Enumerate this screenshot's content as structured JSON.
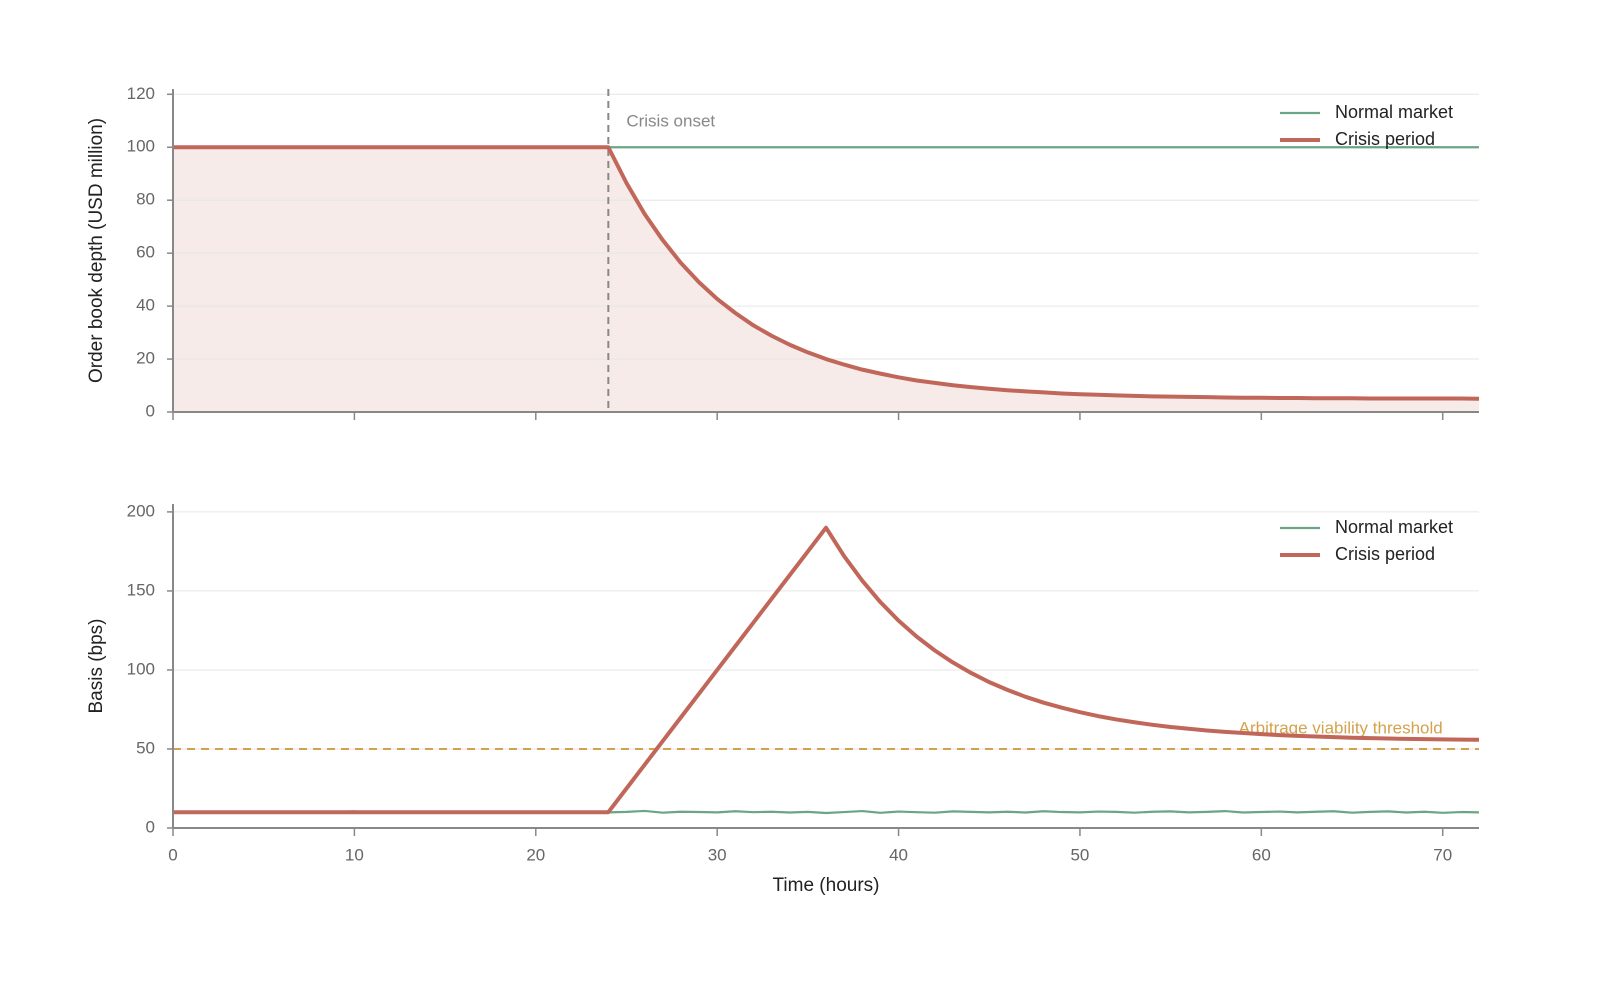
{
  "chart_data": [
    {
      "type": "line",
      "ylabel": "Order book depth (USD million)",
      "x": [
        0,
        1,
        2,
        3,
        4,
        5,
        6,
        7,
        8,
        9,
        10,
        11,
        12,
        13,
        14,
        15,
        16,
        17,
        18,
        19,
        20,
        21,
        22,
        23,
        24,
        25,
        26,
        27,
        28,
        29,
        30,
        31,
        32,
        33,
        34,
        35,
        36,
        37,
        38,
        39,
        40,
        41,
        42,
        43,
        44,
        45,
        46,
        47,
        48,
        49,
        50,
        51,
        52,
        53,
        54,
        55,
        56,
        57,
        58,
        59,
        60,
        61,
        62,
        63,
        64,
        65,
        66,
        67,
        68,
        69,
        70,
        71,
        72
      ],
      "series": [
        {
          "name": "Normal market",
          "color": "#6aa584",
          "values": [
            100,
            100,
            100,
            100,
            100,
            100,
            100,
            100,
            100,
            100,
            100,
            100,
            100,
            100,
            100,
            100,
            100,
            100,
            100,
            100,
            100,
            100,
            100,
            100,
            100,
            100,
            100,
            100,
            100,
            100,
            100,
            100,
            100,
            100,
            100,
            100,
            100,
            100,
            100,
            100,
            100,
            100,
            100,
            100,
            100,
            100,
            100,
            100,
            100,
            100,
            100,
            100,
            100,
            100,
            100,
            100,
            100,
            100,
            100,
            100,
            100,
            100,
            100,
            100,
            100,
            100,
            100,
            100,
            100,
            100,
            100,
            100,
            100
          ]
        },
        {
          "name": "Crisis period",
          "color": "#c0675a",
          "values": [
            100,
            100,
            100,
            100,
            100,
            100,
            100,
            100,
            100,
            100,
            100,
            100,
            100,
            100,
            100,
            100,
            100,
            100,
            100,
            100,
            100,
            100,
            100,
            100,
            100,
            86.5,
            74.8,
            64.9,
            56.3,
            49,
            42.7,
            37.4,
            32.7,
            28.8,
            25.4,
            22.5,
            20,
            17.9,
            16,
            14.5,
            13.1,
            11.9,
            11,
            10.1,
            9.4,
            8.8,
            8.2,
            7.8,
            7.4,
            7,
            6.7,
            6.5,
            6.3,
            6.1,
            5.9,
            5.8,
            5.7,
            5.6,
            5.5,
            5.4,
            5.4,
            5.3,
            5.3,
            5.2,
            5.2,
            5.2,
            5.1,
            5.1,
            5.1,
            5.1,
            5.1,
            5.1,
            5
          ]
        }
      ],
      "fill_under": true,
      "xlim": [
        0,
        72
      ],
      "xticks": [
        0,
        10,
        20,
        30,
        40,
        50,
        60,
        70
      ],
      "xtick_labels": false,
      "ylim": [
        0,
        122
      ],
      "yticks": [
        0,
        20,
        40,
        60,
        80,
        100,
        120
      ],
      "grid": true,
      "legend": "upper right",
      "annotations": [
        {
          "x": 24,
          "label": "Crisis onset",
          "color": "#888888"
        }
      ]
    },
    {
      "type": "line",
      "ylabel": "Basis (bps)",
      "xlabel": "Time (hours)",
      "x": [
        0,
        1,
        2,
        3,
        4,
        5,
        6,
        7,
        8,
        9,
        10,
        11,
        12,
        13,
        14,
        15,
        16,
        17,
        18,
        19,
        20,
        21,
        22,
        23,
        24,
        25,
        26,
        27,
        28,
        29,
        30,
        31,
        32,
        33,
        34,
        35,
        36,
        37,
        38,
        39,
        40,
        41,
        42,
        43,
        44,
        45,
        46,
        47,
        48,
        49,
        50,
        51,
        52,
        53,
        54,
        55,
        56,
        57,
        58,
        59,
        60,
        61,
        62,
        63,
        64,
        65,
        66,
        67,
        68,
        69,
        70,
        71,
        72
      ],
      "series": [
        {
          "name": "Normal market",
          "color": "#6aa584",
          "values": [
            10.1,
            9.8,
            10.3,
            9.9,
            10.4,
            9.7,
            10.2,
            10,
            9.6,
            10.3,
            10.5,
            9.9,
            10.2,
            9.8,
            10.1,
            10.4,
            9.7,
            10,
            10.3,
            9.9,
            10.2,
            9.6,
            10.1,
            10.4,
            9.9,
            10.2,
            10.8,
            9.7,
            10.3,
            10.1,
            9.9,
            10.6,
            10,
            10.3,
            9.8,
            10.2,
            9.5,
            10.1,
            10.7,
            9.6,
            10.4,
            10,
            9.7,
            10.5,
            10.2,
            9.9,
            10.3,
            9.8,
            10.6,
            10.1,
            9.9,
            10.4,
            10.2,
            9.7,
            10.3,
            10.5,
            9.9,
            10.2,
            10.7,
            9.8,
            10.1,
            10.4,
            9.9,
            10.3,
            10.6,
            9.7,
            10.2,
            10.5,
            9.8,
            10.3,
            9.6,
            10.1,
            9.9
          ]
        },
        {
          "name": "Crisis period",
          "color": "#c0675a",
          "values": [
            10,
            10,
            10,
            10,
            10,
            10,
            10,
            10,
            10,
            10,
            10,
            10,
            10,
            10,
            10,
            10,
            10,
            10,
            10,
            10,
            10,
            10,
            10,
            10,
            10,
            25,
            40,
            55,
            70,
            85,
            100,
            115,
            130,
            145,
            160,
            175,
            190,
            172,
            156.5,
            142.9,
            131.2,
            121.1,
            112.3,
            104.7,
            98.1,
            92.3,
            87.4,
            83,
            79.3,
            76.1,
            73.3,
            70.8,
            68.7,
            66.9,
            65.3,
            63.9,
            62.8,
            61.7,
            60.8,
            60.1,
            59.4,
            58.8,
            58.3,
            57.9,
            57.5,
            57.1,
            56.9,
            56.6,
            56.4,
            56.2,
            56.1,
            55.9,
            55.8
          ]
        }
      ],
      "xlim": [
        0,
        72
      ],
      "xticks": [
        0,
        10,
        20,
        30,
        40,
        50,
        60,
        70
      ],
      "xtick_labels": true,
      "ylim": [
        0,
        205
      ],
      "yticks": [
        0,
        50,
        100,
        150,
        200
      ],
      "grid": true,
      "legend": "upper right",
      "annotations": [
        {
          "y": 50,
          "label": "Arbitrage viability threshold",
          "color": "#d4a24c"
        }
      ]
    }
  ]
}
